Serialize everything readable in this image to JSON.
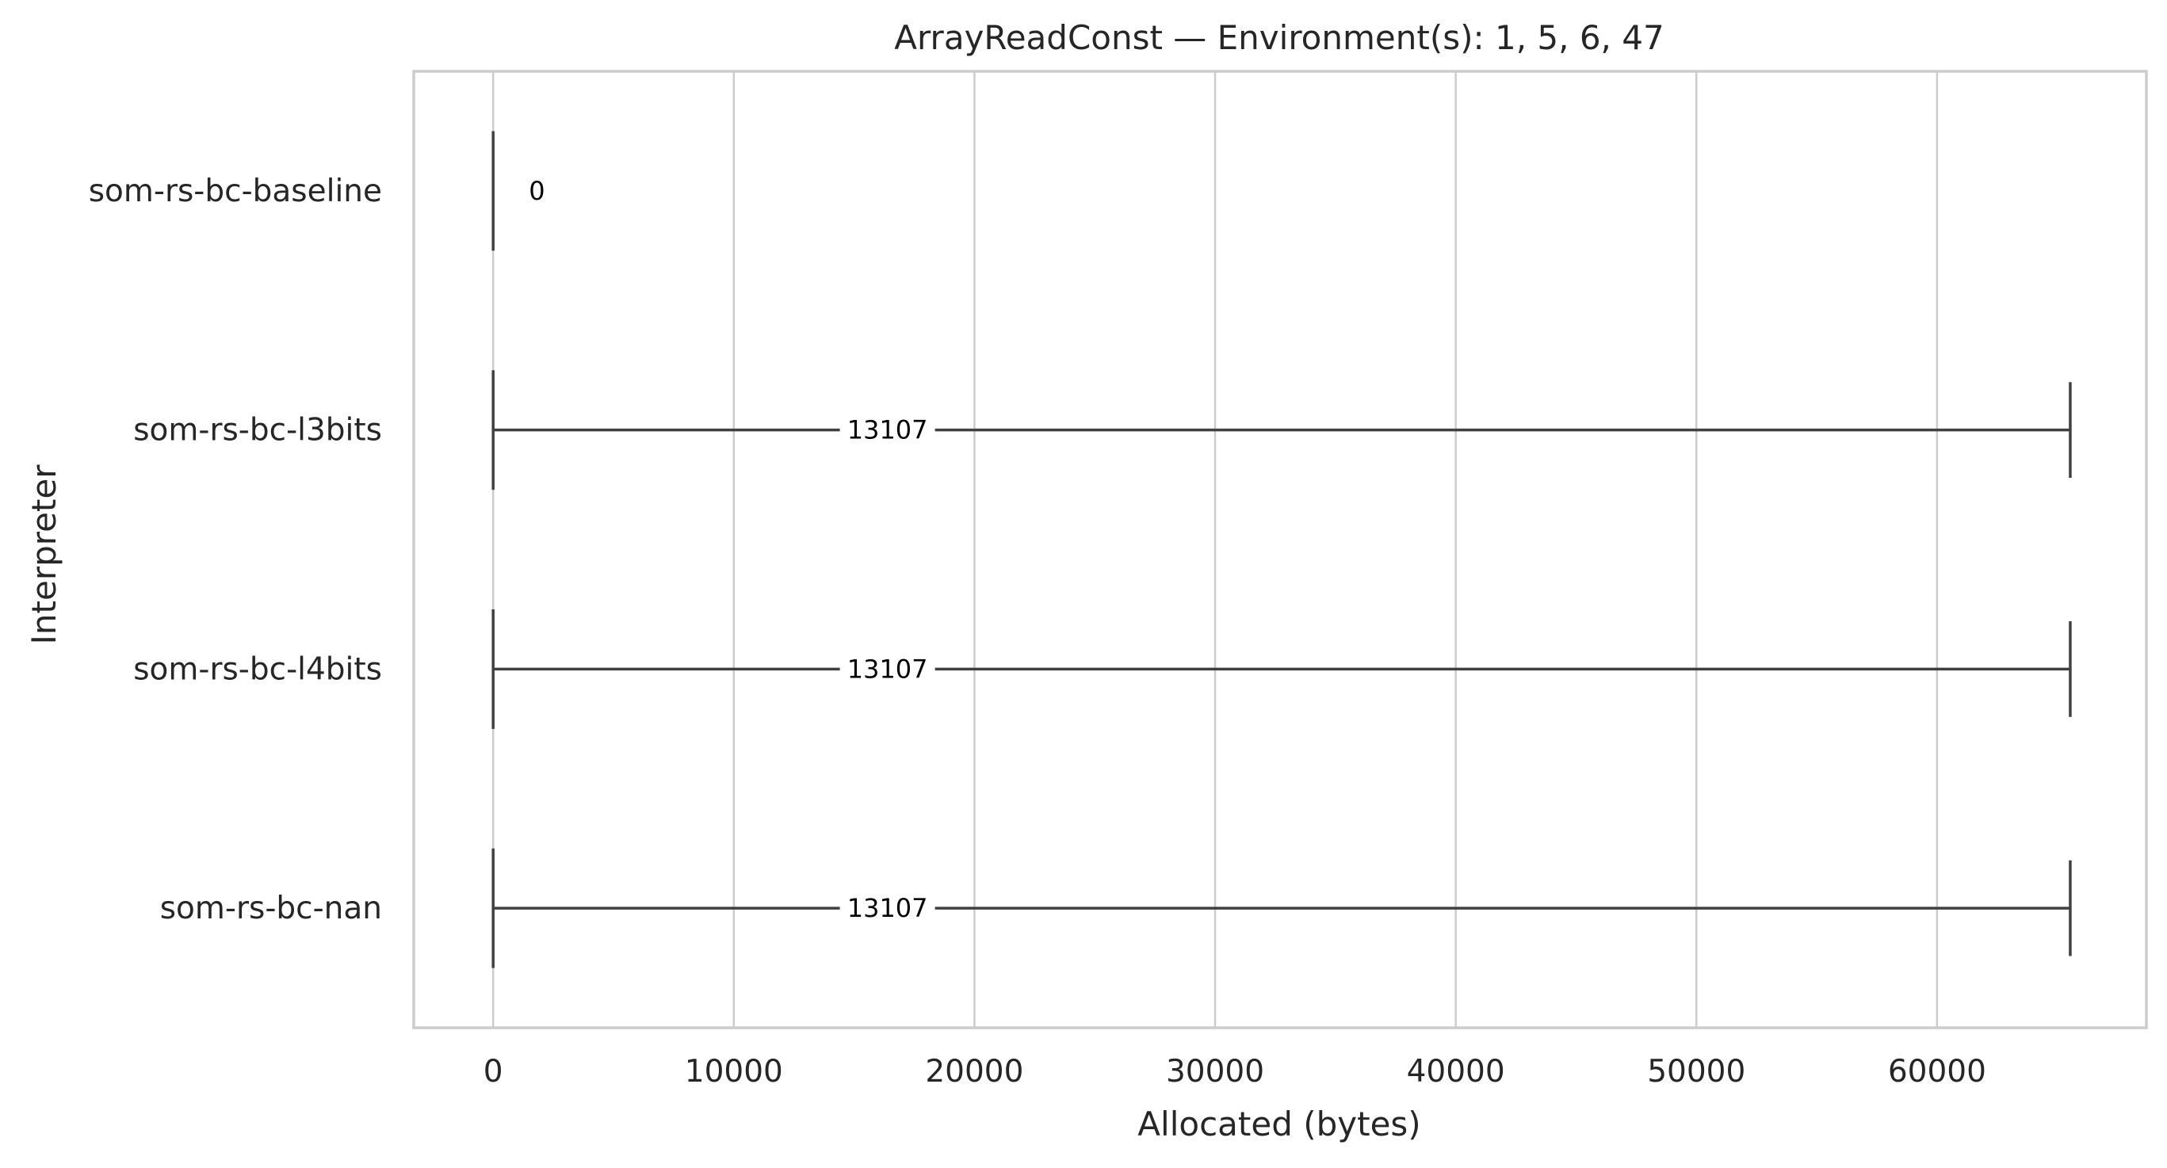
{
  "chart_data": {
    "type": "box",
    "orientation": "horizontal",
    "title": "ArrayReadConst — Environment(s): 1, 5, 6, 47",
    "xlabel": "Allocated (bytes)",
    "ylabel": "Interpreter",
    "xlim": [
      -3300,
      68700
    ],
    "xticks": [
      0,
      10000,
      20000,
      30000,
      40000,
      50000,
      60000
    ],
    "xtick_labels": [
      "0",
      "10000",
      "20000",
      "30000",
      "40000",
      "50000",
      "60000"
    ],
    "grid": "x",
    "categories": [
      "som-rs-bc-baseline",
      "som-rs-bc-l3bits",
      "som-rs-bc-l4bits",
      "som-rs-bc-nan"
    ],
    "series": [
      {
        "category": "som-rs-bc-baseline",
        "min": 0,
        "q1": 0,
        "median": 0,
        "q3": 0,
        "max": 0,
        "mean_label": "0"
      },
      {
        "category": "som-rs-bc-l3bits",
        "min": 0,
        "q1": 0,
        "median": 0,
        "q3": 0,
        "max": 65536,
        "mean_label": "13107"
      },
      {
        "category": "som-rs-bc-l4bits",
        "min": 0,
        "q1": 0,
        "median": 0,
        "q3": 0,
        "max": 65536,
        "mean_label": "13107"
      },
      {
        "category": "som-rs-bc-nan",
        "min": 0,
        "q1": 0,
        "median": 0,
        "q3": 0,
        "max": 65536,
        "mean_label": "13107"
      }
    ],
    "colors": {
      "grid": "#cccccc",
      "frame": "#cccccc",
      "whisker": "#404040",
      "text": "#262626"
    }
  }
}
